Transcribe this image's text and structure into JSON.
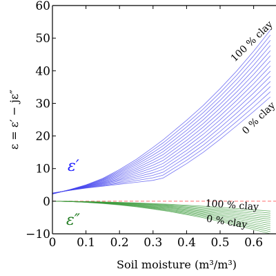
{
  "chart_data": {
    "type": "line",
    "xlabel": "Soil moisture (m³/m³)",
    "ylabel": "ε = ε′ − jε″",
    "xlim": [
      0,
      0.65
    ],
    "ylim": [
      -10,
      60
    ],
    "xticks": [
      0,
      0.1,
      0.2,
      0.3,
      0.4,
      0.5,
      0.6
    ],
    "xtick_labels": [
      "0",
      "0.1",
      "0.2",
      "0.3",
      "0.4",
      "0.5",
      "0.6"
    ],
    "yticks": [
      -10,
      0,
      10,
      20,
      30,
      40,
      50,
      60
    ],
    "ytick_labels": [
      "−10",
      "0",
      "10",
      "20",
      "30",
      "40",
      "50",
      "60"
    ],
    "grid": false,
    "reference_line": {
      "y": 0,
      "color": "#ff6b6b",
      "style": "dashed"
    },
    "annotations": {
      "real_clay_max": "100 % clay",
      "real_clay_min": "0 % clay",
      "imag_clay_max": "100 % clay",
      "imag_clay_min": "0 % clay"
    },
    "series_groups": [
      {
        "label": "ε′",
        "color": "#4444ee",
        "label_color": "#1a1aff",
        "x": [
          0,
          0.05,
          0.1,
          0.15,
          0.2,
          0.25,
          0.3,
          0.33,
          0.4,
          0.45,
          0.5,
          0.55,
          0.6,
          0.65
        ],
        "families": [
          {
            "clay_percent": 100,
            "y": [
              2.2,
              3.5,
              5.0,
              7.0,
              9.7,
              12.8,
              16.5,
              18.8,
              24.8,
              29.4,
              34.5,
              40.0,
              46.0,
              52.5
            ]
          },
          {
            "clay_percent": 0,
            "y": [
              2.5,
              3.3,
              4.0,
              4.6,
              5.2,
              5.8,
              6.4,
              7.1,
              11.5,
              15.0,
              19.0,
              23.2,
              27.5,
              32.0
            ]
          }
        ],
        "curve_count": 14
      },
      {
        "label": "ε″",
        "color": "#3a9a3a",
        "label_color": "#1f7a1f",
        "x": [
          0,
          0.05,
          0.1,
          0.15,
          0.2,
          0.25,
          0.3,
          0.35,
          0.4,
          0.45,
          0.5,
          0.55,
          0.6,
          0.65
        ],
        "families": [
          {
            "clay_percent": 100,
            "y": [
              0,
              -0.05,
              -0.12,
              -0.22,
              -0.35,
              -0.52,
              -0.72,
              -0.95,
              -1.22,
              -1.52,
              -1.86,
              -2.23,
              -2.63,
              -3.05
            ]
          },
          {
            "clay_percent": 0,
            "y": [
              0,
              -0.12,
              -0.35,
              -0.7,
              -1.15,
              -1.72,
              -2.4,
              -3.2,
              -4.1,
              -5.1,
              -6.2,
              -7.4,
              -8.7,
              -10.0
            ]
          }
        ],
        "curve_count": 12
      }
    ]
  }
}
